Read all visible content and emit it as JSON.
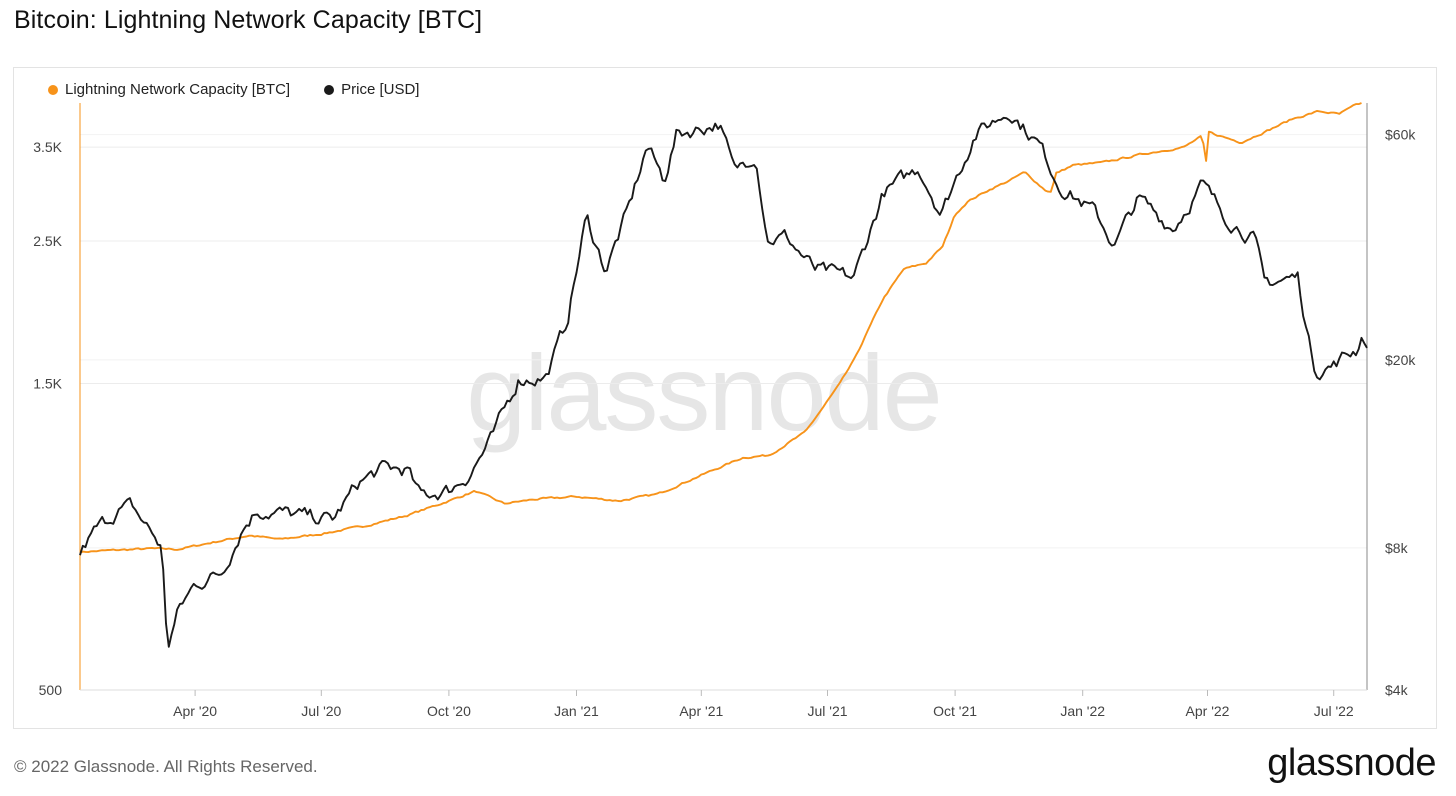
{
  "page": {
    "title": "Bitcoin: Lightning Network Capacity [BTC]",
    "copyright": "© 2022 Glassnode. All Rights Reserved.",
    "brand": "glassnode",
    "watermark": "glassnode"
  },
  "legend": [
    {
      "label": "Lightning Network Capacity [BTC]",
      "color": "#f7931a"
    },
    {
      "label": "Price [USD]",
      "color": "#1a1a1a"
    }
  ],
  "chart_data": {
    "type": "line",
    "x_axis": {
      "type": "time",
      "range": [
        "2020-01-09",
        "2022-07-25"
      ],
      "ticks": [
        {
          "label": "Apr '20",
          "date": "2020-04-01"
        },
        {
          "label": "Jul '20",
          "date": "2020-07-01"
        },
        {
          "label": "Oct '20",
          "date": "2020-10-01"
        },
        {
          "label": "Jan '21",
          "date": "2021-01-01"
        },
        {
          "label": "Apr '21",
          "date": "2021-04-01"
        },
        {
          "label": "Jul '21",
          "date": "2021-07-01"
        },
        {
          "label": "Oct '21",
          "date": "2021-10-01"
        },
        {
          "label": "Jan '22",
          "date": "2022-01-01"
        },
        {
          "label": "Apr '22",
          "date": "2022-04-01"
        },
        {
          "label": "Jul '22",
          "date": "2022-07-01"
        }
      ]
    },
    "y_left": {
      "scale": "log",
      "range": [
        500,
        4100
      ],
      "ticks": [
        {
          "label": "500",
          "value": 500
        },
        {
          "label": "1.5K",
          "value": 1500
        },
        {
          "label": "2.5K",
          "value": 2500
        },
        {
          "label": "3.5K",
          "value": 3500
        }
      ]
    },
    "y_right": {
      "scale": "log",
      "range": [
        4000,
        70000
      ],
      "ticks": [
        {
          "label": "$4k",
          "value": 4000
        },
        {
          "label": "$8k",
          "value": 8000
        },
        {
          "label": "$20k",
          "value": 20000
        },
        {
          "label": "$60k",
          "value": 60000
        }
      ]
    },
    "grid": true,
    "legend_position": "top-left",
    "series": [
      {
        "name": "Lightning Network Capacity [BTC]",
        "axis": "left",
        "color": "#f7931a",
        "points": [
          [
            "2020-01-09",
            820
          ],
          [
            "2020-02-01",
            825
          ],
          [
            "2020-03-01",
            830
          ],
          [
            "2020-03-20",
            828
          ],
          [
            "2020-04-15",
            850
          ],
          [
            "2020-05-10",
            870
          ],
          [
            "2020-06-01",
            858
          ],
          [
            "2020-07-01",
            875
          ],
          [
            "2020-08-01",
            900
          ],
          [
            "2020-09-01",
            935
          ],
          [
            "2020-10-01",
            985
          ],
          [
            "2020-10-20",
            1020
          ],
          [
            "2020-11-10",
            975
          ],
          [
            "2020-12-01",
            990
          ],
          [
            "2021-01-01",
            1000
          ],
          [
            "2021-02-01",
            985
          ],
          [
            "2021-03-01",
            1010
          ],
          [
            "2021-04-01",
            1080
          ],
          [
            "2021-05-01",
            1150
          ],
          [
            "2021-05-20",
            1160
          ],
          [
            "2021-06-15",
            1260
          ],
          [
            "2021-07-10",
            1500
          ],
          [
            "2021-07-20",
            1630
          ],
          [
            "2021-08-10",
            2030
          ],
          [
            "2021-08-25",
            2260
          ],
          [
            "2021-09-10",
            2310
          ],
          [
            "2021-09-22",
            2450
          ],
          [
            "2021-10-01",
            2750
          ],
          [
            "2021-10-10",
            2880
          ],
          [
            "2021-10-25",
            3000
          ],
          [
            "2021-11-10",
            3110
          ],
          [
            "2021-11-20",
            3200
          ],
          [
            "2021-12-05",
            3000
          ],
          [
            "2021-12-10",
            2980
          ],
          [
            "2021-12-12",
            3180
          ],
          [
            "2021-12-25",
            3280
          ],
          [
            "2022-01-15",
            3310
          ],
          [
            "2022-02-15",
            3420
          ],
          [
            "2022-03-15",
            3500
          ],
          [
            "2022-03-28",
            3640
          ],
          [
            "2022-03-31",
            3320
          ],
          [
            "2022-04-02",
            3690
          ],
          [
            "2022-04-25",
            3560
          ],
          [
            "2022-05-15",
            3720
          ],
          [
            "2022-06-01",
            3870
          ],
          [
            "2022-06-20",
            3980
          ],
          [
            "2022-07-05",
            3940
          ],
          [
            "2022-07-17",
            4070
          ],
          [
            "2022-07-22",
            4100
          ]
        ]
      },
      {
        "name": "Price [USD]",
        "axis": "right",
        "color": "#1a1a1a",
        "points": [
          [
            "2020-01-09",
            7800
          ],
          [
            "2020-01-20",
            8700
          ],
          [
            "2020-02-05",
            9600
          ],
          [
            "2020-02-15",
            9800
          ],
          [
            "2020-03-01",
            8600
          ],
          [
            "2020-03-08",
            8000
          ],
          [
            "2020-03-12",
            4900
          ],
          [
            "2020-03-20",
            5900
          ],
          [
            "2020-04-01",
            6700
          ],
          [
            "2020-04-20",
            7100
          ],
          [
            "2020-05-05",
            8800
          ],
          [
            "2020-05-15",
            9600
          ],
          [
            "2020-06-01",
            9500
          ],
          [
            "2020-06-20",
            9300
          ],
          [
            "2020-07-10",
            9200
          ],
          [
            "2020-07-28",
            11000
          ],
          [
            "2020-08-15",
            11800
          ],
          [
            "2020-09-01",
            11700
          ],
          [
            "2020-09-10",
            10300
          ],
          [
            "2020-10-01",
            10600
          ],
          [
            "2020-10-15",
            11400
          ],
          [
            "2020-11-01",
            13600
          ],
          [
            "2020-11-20",
            18200
          ],
          [
            "2020-12-10",
            18400
          ],
          [
            "2020-12-25",
            24000
          ],
          [
            "2021-01-08",
            40000
          ],
          [
            "2021-01-22",
            31000
          ],
          [
            "2021-02-08",
            42000
          ],
          [
            "2021-02-21",
            57000
          ],
          [
            "2021-03-05",
            48000
          ],
          [
            "2021-03-14",
            60000
          ],
          [
            "2021-04-14",
            63500
          ],
          [
            "2021-04-25",
            50000
          ],
          [
            "2021-05-10",
            55000
          ],
          [
            "2021-05-19",
            36000
          ],
          [
            "2021-06-01",
            36500
          ],
          [
            "2021-06-22",
            31000
          ],
          [
            "2021-07-20",
            29800
          ],
          [
            "2021-08-10",
            45000
          ],
          [
            "2021-09-05",
            51000
          ],
          [
            "2021-09-21",
            41000
          ],
          [
            "2021-10-15",
            60000
          ],
          [
            "2021-11-09",
            67500
          ],
          [
            "2021-12-01",
            57000
          ],
          [
            "2021-12-15",
            47000
          ],
          [
            "2022-01-10",
            41000
          ],
          [
            "2022-01-24",
            35000
          ],
          [
            "2022-02-10",
            44000
          ],
          [
            "2022-03-07",
            38000
          ],
          [
            "2022-03-28",
            47000
          ],
          [
            "2022-04-15",
            40000
          ],
          [
            "2022-05-05",
            36000
          ],
          [
            "2022-05-12",
            29000
          ],
          [
            "2022-06-05",
            30000
          ],
          [
            "2022-06-13",
            22000
          ],
          [
            "2022-06-18",
            19000
          ],
          [
            "2022-07-01",
            19500
          ],
          [
            "2022-07-10",
            20500
          ],
          [
            "2022-07-17",
            21000
          ],
          [
            "2022-07-22",
            22800
          ],
          [
            "2022-07-25",
            21500
          ]
        ]
      }
    ]
  }
}
